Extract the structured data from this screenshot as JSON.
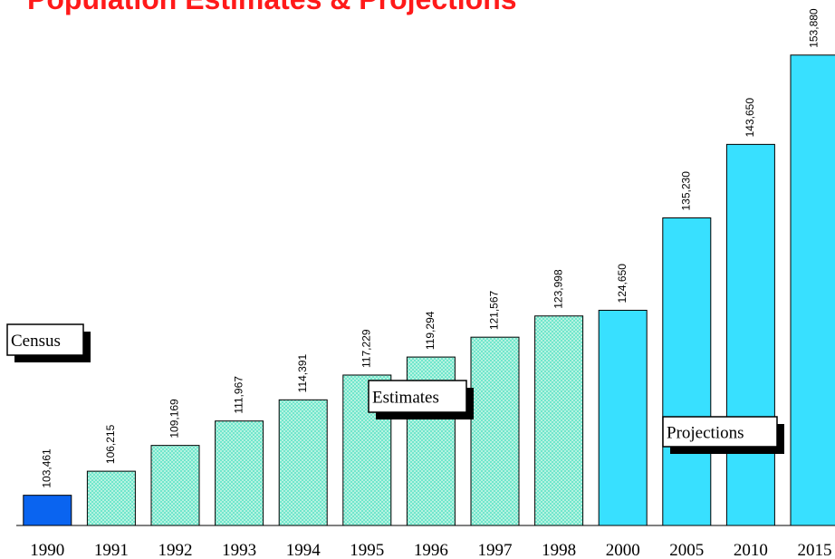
{
  "chart_data": {
    "type": "bar",
    "title": "Population Estimates & Projections",
    "categories": [
      "1990",
      "1991",
      "1992",
      "1993",
      "1994",
      "1995",
      "1996",
      "1997",
      "1998",
      "2000",
      "2005",
      "2010",
      "2015"
    ],
    "values": [
      103461,
      106215,
      109169,
      111967,
      114391,
      117229,
      119294,
      121567,
      123998,
      124650,
      135230,
      143650,
      153880
    ],
    "value_labels": [
      "103,461",
      "106,215",
      "109,169",
      "111,967",
      "114,391",
      "117,229",
      "119,294",
      "121,567",
      "123,998",
      "124,650",
      "135,230",
      "143,650",
      "153,880"
    ],
    "colors": [
      "#0a64f0",
      "#b4f2dc",
      "#b4f2dc",
      "#b4f2dc",
      "#b4f2dc",
      "#b4f2dc",
      "#b4f2dc",
      "#b4f2dc",
      "#b4f2dc",
      "#38e0ff",
      "#38e0ff",
      "#38e0ff",
      "#38e0ff"
    ],
    "hatched": [
      false,
      true,
      true,
      true,
      true,
      true,
      true,
      true,
      true,
      false,
      false,
      false,
      false
    ],
    "ylim": [
      100000,
      155000
    ],
    "annotations": [
      "Census",
      "Estimates",
      "Projections"
    ]
  }
}
